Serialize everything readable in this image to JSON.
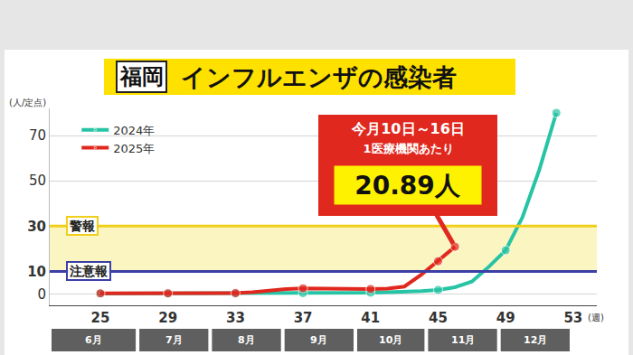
{
  "chart_data": {
    "type": "line",
    "title": "福岡",
    "subtitle": "インフルエンザの感染者",
    "ylabel": "(人/定点)",
    "xlabel": "(週)",
    "x": [
      25,
      26,
      27,
      28,
      29,
      30,
      31,
      32,
      33,
      34,
      35,
      36,
      37,
      38,
      39,
      40,
      41,
      42,
      43,
      44,
      45,
      46,
      47,
      48,
      49,
      50,
      51,
      52
    ],
    "series": [
      {
        "name": "2024年",
        "color": "#26c4a4",
        "values": [
          0.2,
          0.2,
          0.2,
          0.2,
          0.2,
          0.2,
          0.2,
          0.2,
          0.2,
          0.3,
          0.3,
          0.3,
          0.4,
          0.4,
          0.4,
          0.5,
          0.6,
          0.8,
          1.0,
          1.3,
          1.8,
          3.0,
          5.5,
          12.0,
          19.3,
          34,
          55,
          80
        ]
      },
      {
        "name": "2025年",
        "color": "#e0281e",
        "values": [
          0.3,
          0.3,
          0.3,
          0.3,
          0.3,
          0.3,
          0.3,
          0.3,
          0.4,
          0.8,
          1.5,
          2.2,
          2.5,
          2.4,
          2.2,
          2.1,
          2.2,
          2.4,
          3.3,
          8.5,
          14.5,
          20.89,
          null,
          null,
          null,
          null,
          null,
          null
        ],
        "value_labels": [
          null,
          null,
          null,
          null,
          null,
          null,
          null,
          null,
          null,
          null,
          null,
          null,
          null,
          null,
          null,
          null,
          null,
          null,
          null,
          null,
          null,
          "20.89人",
          null,
          null,
          null,
          null,
          null,
          null
        ]
      }
    ],
    "annotations": [
      "今月10日～16日",
      "1医療機関あたり"
    ],
    "data_labels": true,
    "xlim": [
      22,
      54.4
    ],
    "xticks": [
      25,
      29,
      33,
      37,
      41,
      45,
      49,
      53
    ],
    "ylim": [
      -5,
      82
    ],
    "yticks": [
      0,
      10,
      30,
      50,
      70
    ],
    "thresholds": [
      {
        "value": 30,
        "label": "警報",
        "color": "#f0cf1a"
      },
      {
        "value": 10,
        "label": "注意報",
        "color": "#3b3fa6"
      }
    ],
    "months": [
      {
        "label": "6月",
        "from": 22,
        "to": 27.2
      },
      {
        "label": "7月",
        "from": 27.2,
        "to": 31.5
      },
      {
        "label": "8月",
        "from": 31.5,
        "to": 35.8
      },
      {
        "label": "9月",
        "from": 35.8,
        "to": 40.1
      },
      {
        "label": "10月",
        "from": 40.1,
        "to": 44.3
      },
      {
        "label": "11月",
        "from": 44.3,
        "to": 48.6
      },
      {
        "label": "12月",
        "from": 48.6,
        "to": 52.9
      }
    ],
    "marker": "circle",
    "grid": true,
    "legend": "upper left"
  }
}
